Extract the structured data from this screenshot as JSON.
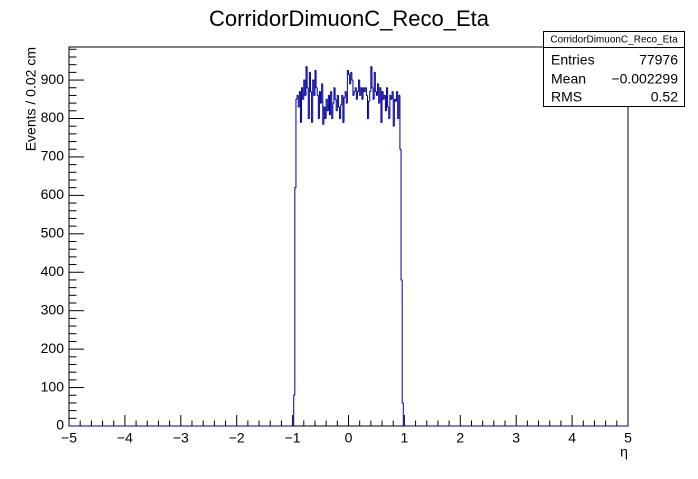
{
  "chart_data": {
    "type": "histogram",
    "title": "CorridorDimuonC_Reco_Eta",
    "x_label": "η",
    "y_label": "Events / 0.02 cm",
    "color": "#000099",
    "xlim": [
      -5,
      5
    ],
    "ylim": [
      0,
      986
    ],
    "xticks": [
      {
        "value": -5,
        "label": "−5"
      },
      {
        "value": -4,
        "label": "−4"
      },
      {
        "value": -3,
        "label": "−3"
      },
      {
        "value": -2,
        "label": "−2"
      },
      {
        "value": -1,
        "label": "−1"
      },
      0,
      1,
      2,
      3,
      4,
      5
    ],
    "yticks": [
      0,
      100,
      200,
      300,
      400,
      500,
      600,
      700,
      800,
      900
    ],
    "bins": [
      -1,
      -0.98,
      -0.96,
      -0.94,
      -0.92,
      -0.9,
      -0.88,
      -0.86,
      -0.84,
      -0.82,
      -0.8,
      -0.78,
      -0.76,
      -0.74,
      -0.72,
      -0.7,
      -0.68,
      -0.66,
      -0.64,
      -0.62,
      -0.6,
      -0.58,
      -0.56,
      -0.54,
      -0.52,
      -0.5,
      -0.48,
      -0.46,
      -0.44,
      -0.42,
      -0.4,
      -0.38,
      -0.36,
      -0.34,
      -0.32,
      -0.3,
      -0.28,
      -0.26,
      -0.24,
      -0.22,
      -0.2,
      -0.18,
      -0.16,
      -0.14,
      -0.12,
      -0.1,
      -0.08,
      -0.06,
      -0.04,
      -0.02,
      0,
      0.02,
      0.04,
      0.06,
      0.08,
      0.1,
      0.12,
      0.14,
      0.16,
      0.18,
      0.2,
      0.22,
      0.24,
      0.26,
      0.28,
      0.3,
      0.32,
      0.34,
      0.36,
      0.38,
      0.4,
      0.42,
      0.44,
      0.46,
      0.48,
      0.5,
      0.52,
      0.54,
      0.56,
      0.58,
      0.6,
      0.62,
      0.64,
      0.66,
      0.68,
      0.7,
      0.72,
      0.74,
      0.76,
      0.78,
      0.8,
      0.82,
      0.84,
      0.86,
      0.88,
      0.9,
      0.92,
      0.94,
      0.96,
      0.98,
      1
    ],
    "values": [
      0,
      80,
      620,
      850,
      860,
      830,
      870,
      790,
      880,
      850,
      900,
      860,
      935,
      880,
      800,
      920,
      870,
      790,
      900,
      860,
      925,
      880,
      860,
      800,
      870,
      840,
      890,
      785,
      830,
      800,
      850,
      820,
      860,
      810,
      870,
      800,
      840,
      880,
      850,
      820,
      860,
      830,
      800,
      835,
      860,
      790,
      855,
      870,
      840,
      925,
      915,
      890,
      920,
      900,
      860,
      870,
      880,
      850,
      870,
      900,
      860,
      880,
      850,
      880,
      870,
      880,
      860,
      800,
      845,
      870,
      935,
      880,
      850,
      920,
      870,
      860,
      890,
      840,
      880,
      790,
      870,
      850,
      860,
      820,
      880,
      830,
      800,
      860,
      850,
      870,
      780,
      850,
      845,
      870,
      800,
      860,
      720,
      380,
      60,
      0
    ],
    "stats": {
      "title": "CorridorDimuonC_Reco_Eta",
      "rows": [
        {
          "label": "Entries",
          "value": 77976
        },
        {
          "label": "Mean",
          "value": -0.002299,
          "value_label": "−0.002299"
        },
        {
          "label": "RMS",
          "value": 0.52
        }
      ]
    }
  }
}
